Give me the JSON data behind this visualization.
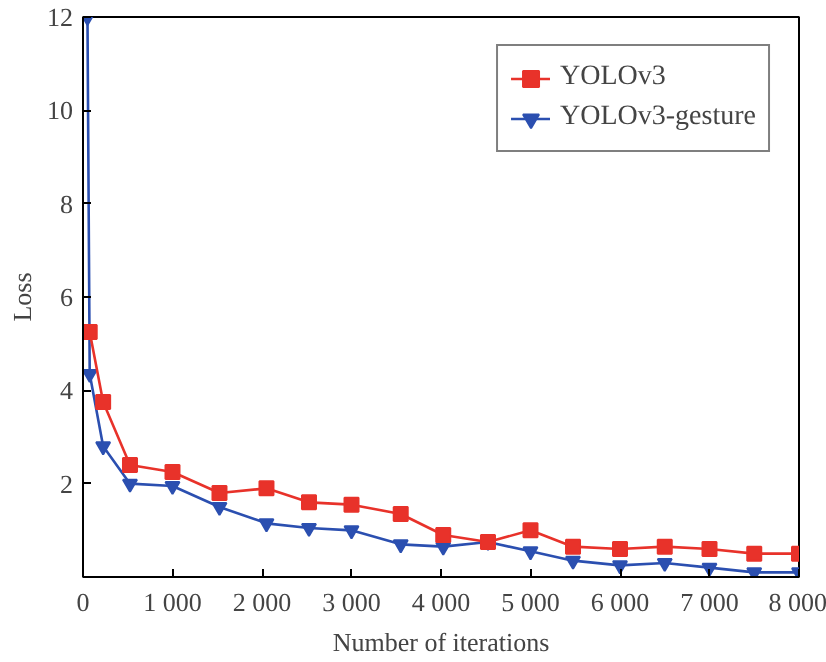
{
  "chart_data": {
    "type": "line",
    "xlabel": "Number of iterations",
    "ylabel": "Loss",
    "xlim": [
      0,
      8000
    ],
    "ylim": [
      0,
      12
    ],
    "xticks": [
      0,
      {
        "value": 1000,
        "label": "1 000"
      },
      {
        "value": 2000,
        "label": "2 000"
      },
      {
        "value": 3000,
        "label": "3 000"
      },
      {
        "value": 4000,
        "label": "4 000"
      },
      {
        "value": 5000,
        "label": "5 000"
      },
      {
        "value": 6000,
        "label": "6 000"
      },
      {
        "value": 7000,
        "label": "7 000"
      },
      {
        "value": 8000,
        "label": "8 000"
      }
    ],
    "yticks": [
      {
        "value": 0,
        "label": null
      },
      2,
      4,
      6,
      8,
      10,
      12
    ],
    "grid": false,
    "legend": "top right",
    "series": [
      {
        "name": "YOLOv3",
        "color": "#e8322a",
        "marker": "square",
        "x": [
          75,
          225,
          525,
          1000,
          1525,
          2050,
          2525,
          3000,
          3550,
          4025,
          4525,
          5000,
          5475,
          6000,
          6500,
          7000,
          7500,
          8000
        ],
        "values": [
          5.25,
          3.75,
          2.4,
          2.25,
          1.8,
          1.9,
          1.6,
          1.55,
          1.35,
          0.9,
          0.75,
          1.0,
          0.65,
          0.6,
          0.65,
          0.6,
          0.5,
          0.5
        ]
      },
      {
        "name": "YOLOv3-gesture",
        "color": "#2b4fb0",
        "marker": "triangle",
        "x": [
          50,
          75,
          225,
          525,
          1000,
          1525,
          2050,
          2525,
          3000,
          3550,
          4025,
          4525,
          5000,
          5475,
          6000,
          6500,
          7000,
          7500,
          8000
        ],
        "values": [
          12,
          4.35,
          2.8,
          2.0,
          1.95,
          1.5,
          1.15,
          1.05,
          1.0,
          0.7,
          0.65,
          0.75,
          0.55,
          0.35,
          0.25,
          0.3,
          0.2,
          0.1,
          0.1
        ]
      }
    ]
  }
}
